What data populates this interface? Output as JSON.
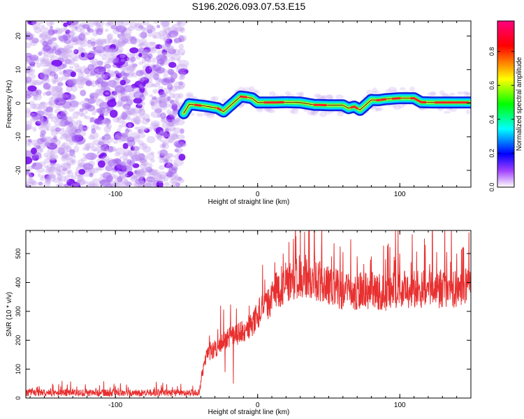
{
  "title": "S196.2026.093.07.53.E15",
  "chart_data": [
    {
      "type": "heatmap",
      "xlabel": "Height of straight line (km)",
      "ylabel": "Frequency (Hz)",
      "xlim": [
        -163,
        150
      ],
      "ylim": [
        -25,
        24.5
      ],
      "xticks": [
        -100,
        0,
        100
      ],
      "yticks": [
        -20,
        -10,
        0,
        10,
        20
      ],
      "noise_region_x": [
        -163,
        -52
      ],
      "ridge": {
        "x": [
          -52,
          -48,
          -44,
          -40,
          -36,
          -32,
          -28,
          -24,
          -20,
          -16,
          -12,
          -8,
          -4,
          0,
          10,
          20,
          30,
          40,
          50,
          60,
          64,
          68,
          72,
          76,
          80,
          85,
          90,
          100,
          110,
          115,
          125,
          135,
          150
        ],
        "y": [
          -3,
          -0.3,
          -0.5,
          -0.7,
          -0.9,
          -1.2,
          -1.5,
          -2.5,
          -1.0,
          0.5,
          2.0,
          1.8,
          1.5,
          0.2,
          0.2,
          0.3,
          0.2,
          -0.5,
          -0.6,
          -0.6,
          -1.5,
          -1.0,
          -2.0,
          -0.5,
          1.0,
          0.9,
          1.2,
          1.5,
          1.5,
          0.3,
          0.2,
          0.2,
          0.2
        ]
      },
      "colorbar": {
        "label": "Normalized spectral amplitude",
        "ticks": [
          0.0,
          0.2,
          0.4,
          0.6,
          0.8
        ],
        "tick_labels": [
          "0.0",
          "0.2",
          "0.4",
          "0.6",
          "0.8"
        ],
        "range": [
          0,
          0.98
        ],
        "stops": [
          "#ffffff",
          "#a040ff",
          "#0000ff",
          "#00ffff",
          "#00ff00",
          "#ffff00",
          "#ff0000",
          "#ff0080"
        ]
      }
    },
    {
      "type": "line",
      "xlabel": "Height of straight line (km)",
      "ylabel": "SNR (10 * v/v)",
      "xlim": [
        -163,
        150
      ],
      "ylim": [
        0,
        580
      ],
      "xticks": [
        -100,
        0,
        100
      ],
      "yticks": [
        0,
        100,
        200,
        300,
        400,
        500
      ],
      "series": [
        {
          "name": "SNR",
          "color": "#e83030",
          "x": [
            -163,
            -150,
            -130,
            -110,
            -90,
            -70,
            -55,
            -45,
            -41,
            -39,
            -36,
            -30,
            -20,
            -10,
            -5,
            0,
            5,
            10,
            15,
            20,
            25,
            30,
            35,
            40,
            45,
            50,
            60,
            70,
            80,
            90,
            100,
            110,
            120,
            130,
            140,
            150
          ],
          "y": [
            18,
            18,
            18,
            18,
            18,
            18,
            18,
            18,
            20,
            80,
            150,
            170,
            210,
            230,
            250,
            290,
            310,
            350,
            380,
            400,
            410,
            425,
            420,
            410,
            400,
            395,
            370,
            370,
            375,
            365,
            375,
            380,
            375,
            380,
            375,
            390
          ],
          "spikes": [
            {
              "x": 30,
              "y": 578
            },
            {
              "x": 33,
              "y": 575
            },
            {
              "x": 22,
              "y": 540
            },
            {
              "x": 27,
              "y": 560
            },
            {
              "x": 18,
              "y": 500
            },
            {
              "x": -26,
              "y": 320
            },
            {
              "x": -15,
              "y": 310
            },
            {
              "x": -6,
              "y": 320
            },
            {
              "x": 5,
              "y": 410
            },
            {
              "x": 12,
              "y": 470
            },
            {
              "x": 40,
              "y": 500
            },
            {
              "x": 45,
              "y": 520
            },
            {
              "x": 52,
              "y": 490
            },
            {
              "x": 60,
              "y": 505
            },
            {
              "x": 70,
              "y": 490
            },
            {
              "x": 80,
              "y": 490
            },
            {
              "x": 90,
              "y": 480
            },
            {
              "x": 100,
              "y": 500
            },
            {
              "x": 108,
              "y": 470
            },
            {
              "x": 118,
              "y": 530
            },
            {
              "x": 126,
              "y": 505
            },
            {
              "x": 133,
              "y": 505
            },
            {
              "x": 140,
              "y": 500
            },
            {
              "x": 145,
              "y": 520
            },
            {
              "x": -140,
              "y": 48
            },
            {
              "x": -100,
              "y": 42
            },
            {
              "x": -60,
              "y": 38
            },
            {
              "x": -40,
              "y": 60
            },
            {
              "x": -23,
              "y": 90
            },
            {
              "x": -17,
              "y": 50
            }
          ]
        }
      ]
    }
  ]
}
